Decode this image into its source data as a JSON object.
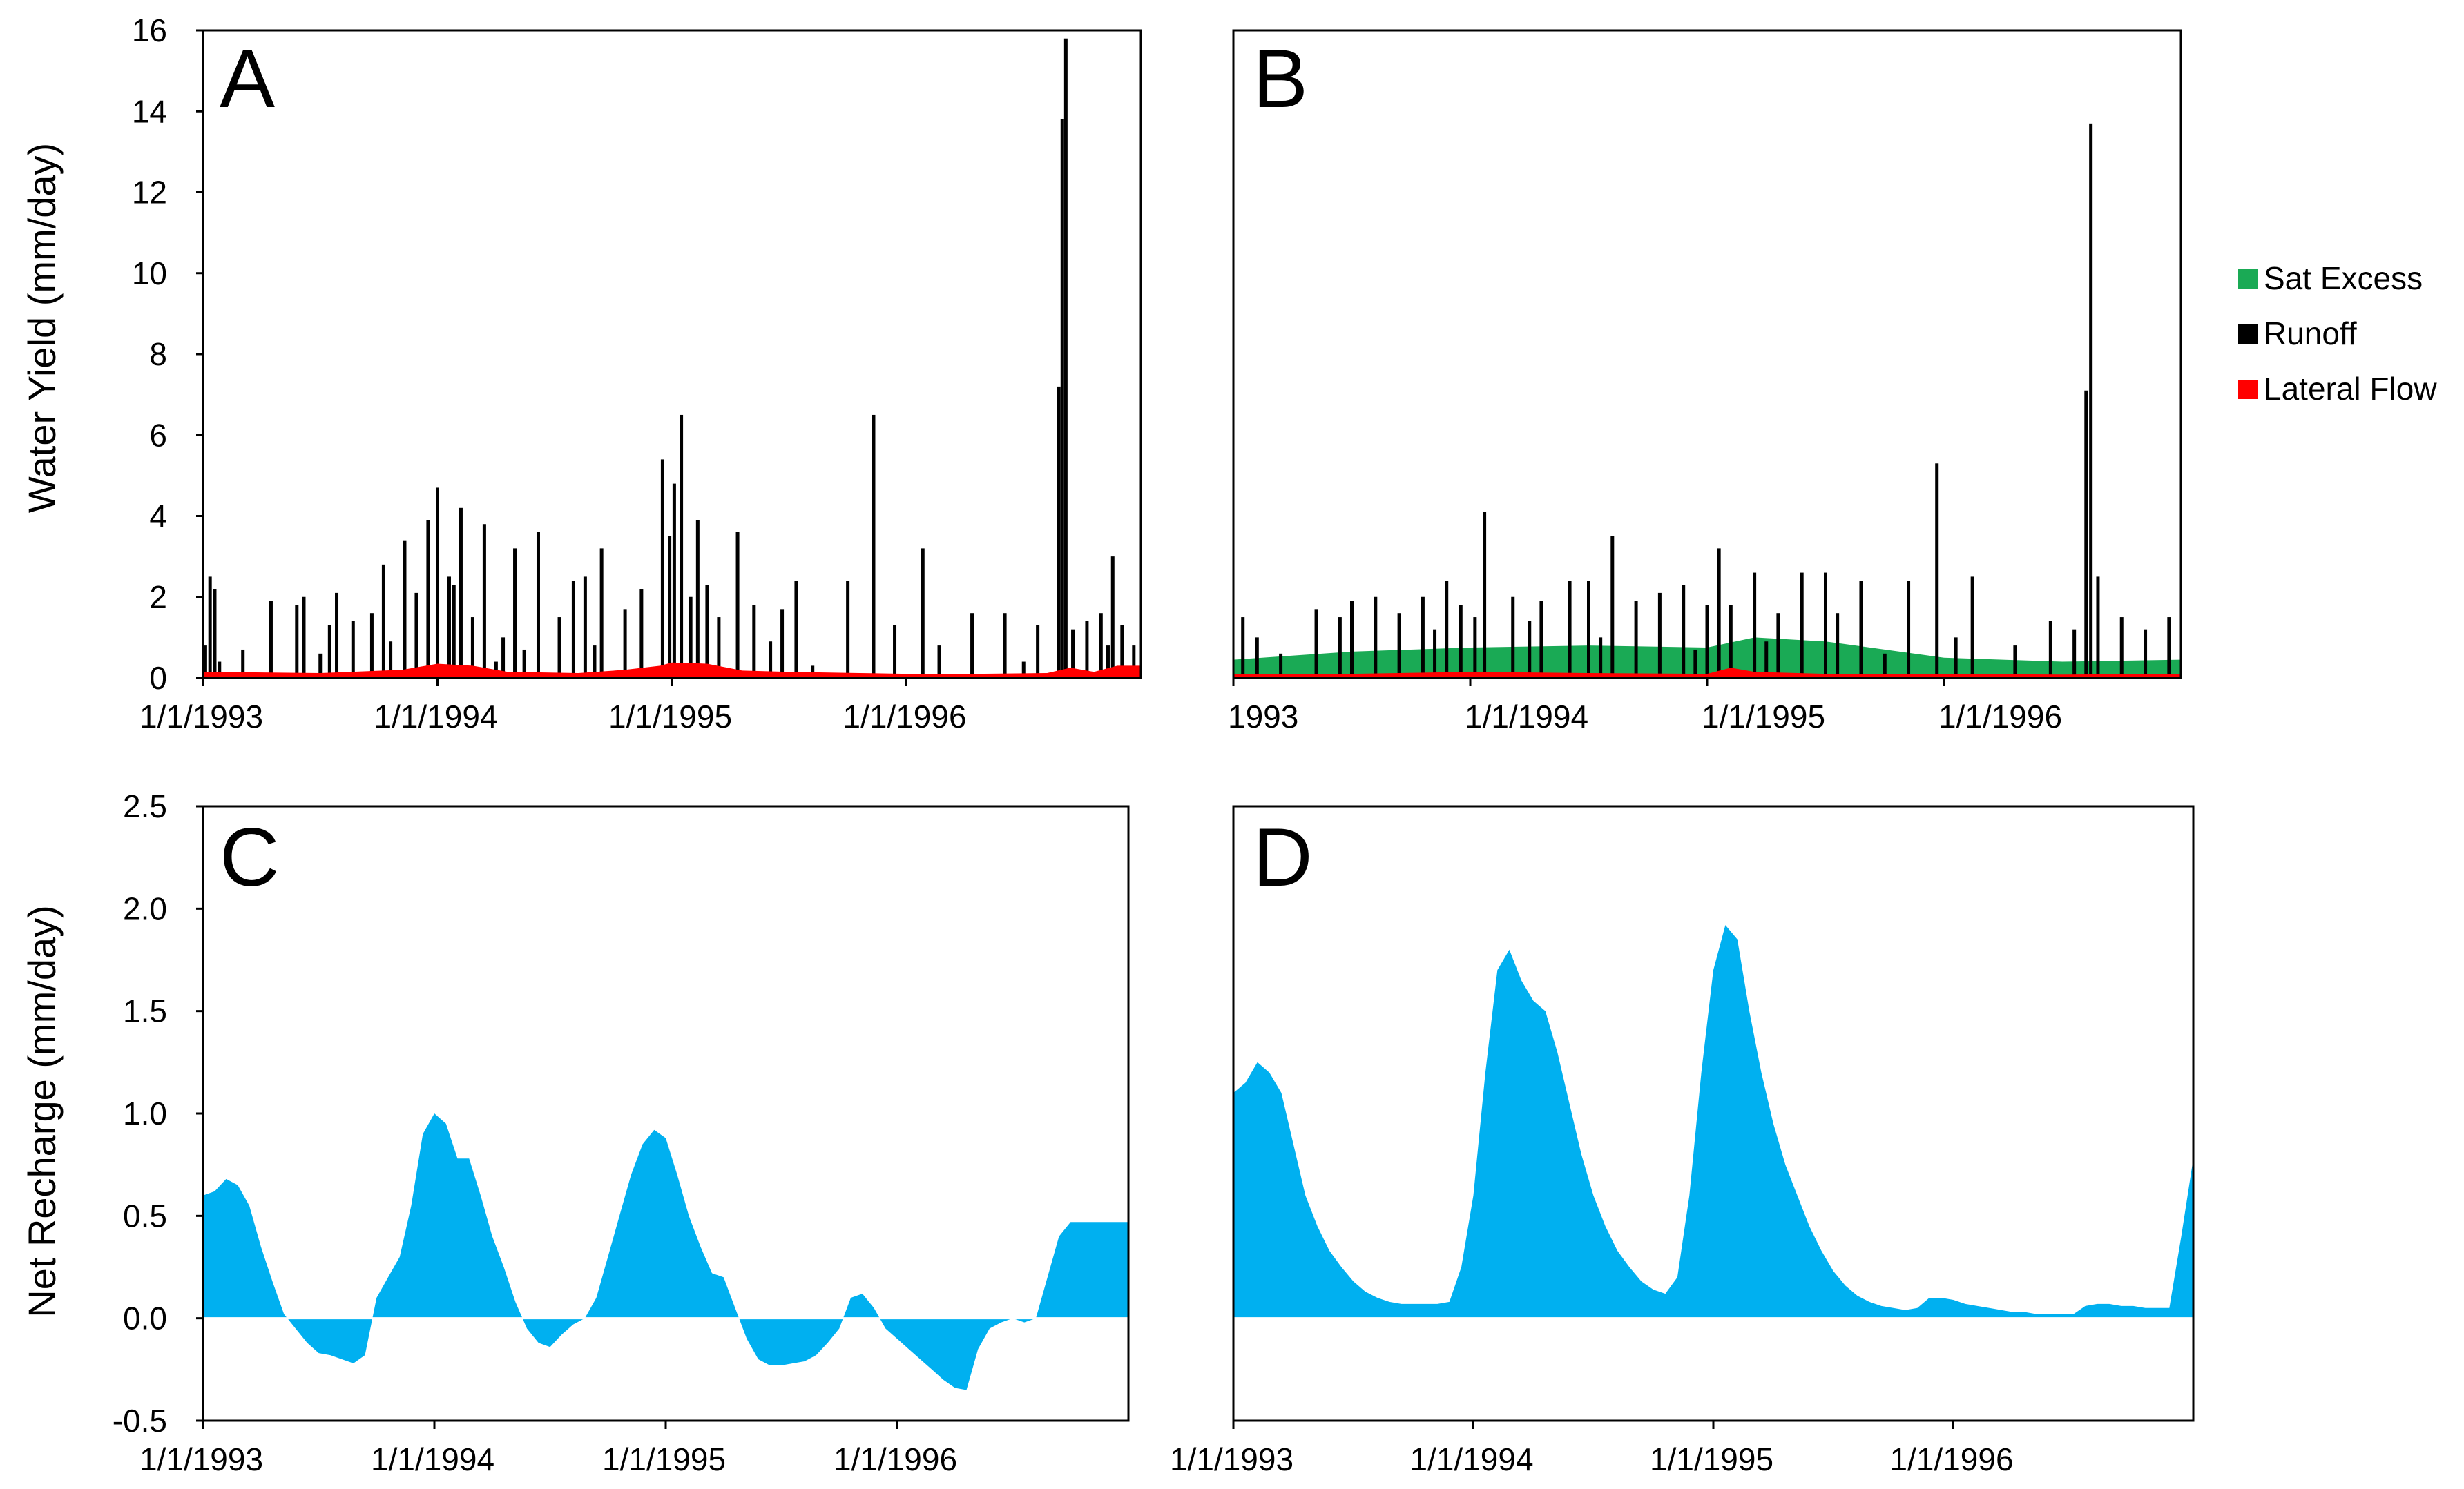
{
  "colors": {
    "sat_excess": "#1aaa55",
    "runoff": "#000000",
    "lateral_flow": "#ff0000",
    "net_recharge": "#00b0f0"
  },
  "legend": {
    "items": [
      {
        "label": "Sat Excess",
        "color": "#1aaa55"
      },
      {
        "label": "Runoff",
        "color": "#000000"
      },
      {
        "label": "Lateral Flow",
        "color": "#ff0000"
      }
    ]
  },
  "chart_data": [
    {
      "panel": "A",
      "type": "bar",
      "ylabel": "Water Yield (mm/day)",
      "ylim": [
        0,
        16
      ],
      "yticks": [
        "0",
        "2",
        "4",
        "6",
        "8",
        "10",
        "12",
        "14",
        "16"
      ],
      "xlim": [
        0,
        4
      ],
      "xtick_labels": [
        "1/1/1993",
        "1/1/1994",
        "1/1/1995",
        "1/1/1996"
      ],
      "series": [
        {
          "name": "Runoff",
          "x": [
            0.01,
            0.03,
            0.05,
            0.07,
            0.17,
            0.29,
            0.4,
            0.43,
            0.5,
            0.54,
            0.57,
            0.64,
            0.72,
            0.77,
            0.8,
            0.86,
            0.91,
            0.96,
            1.0,
            1.05,
            1.07,
            1.1,
            1.15,
            1.2,
            1.25,
            1.28,
            1.33,
            1.37,
            1.43,
            1.52,
            1.58,
            1.63,
            1.67,
            1.7,
            1.8,
            1.87,
            1.96,
            1.99,
            2.01,
            2.04,
            2.08,
            2.11,
            2.15,
            2.2,
            2.28,
            2.35,
            2.42,
            2.47,
            2.53,
            2.6,
            2.75,
            2.86,
            2.95,
            3.07,
            3.14,
            3.28,
            3.42,
            3.5,
            3.56,
            3.65,
            3.665,
            3.68,
            3.71,
            3.77,
            3.83,
            3.86,
            3.88,
            3.92,
            3.97
          ],
          "values": [
            0.8,
            2.5,
            2.2,
            0.4,
            0.7,
            1.9,
            1.8,
            2.0,
            0.6,
            1.3,
            2.1,
            1.4,
            1.6,
            2.8,
            0.9,
            3.4,
            2.1,
            3.9,
            4.7,
            2.5,
            2.3,
            4.2,
            1.5,
            3.8,
            0.4,
            1.0,
            3.2,
            0.7,
            3.6,
            1.5,
            2.4,
            2.5,
            0.8,
            3.2,
            1.7,
            2.2,
            5.4,
            3.5,
            4.8,
            6.5,
            2.0,
            3.9,
            2.3,
            1.5,
            3.6,
            1.8,
            0.9,
            1.7,
            2.4,
            0.3,
            2.4,
            6.5,
            1.3,
            3.2,
            0.8,
            1.6,
            1.6,
            0.4,
            1.3,
            7.2,
            13.8,
            15.8,
            1.2,
            1.4,
            1.6,
            0.8,
            3.0,
            1.3,
            0.8
          ]
        },
        {
          "name": "Lateral Flow",
          "x": [
            0,
            0.5,
            0.85,
            1.0,
            1.15,
            1.3,
            1.6,
            1.8,
            1.95,
            2.0,
            2.15,
            2.3,
            2.5,
            2.8,
            3.0,
            3.3,
            3.6,
            3.7,
            3.8,
            3.9,
            4.0
          ],
          "values": [
            0.15,
            0.12,
            0.2,
            0.35,
            0.3,
            0.15,
            0.12,
            0.2,
            0.3,
            0.38,
            0.35,
            0.18,
            0.15,
            0.12,
            0.1,
            0.1,
            0.12,
            0.25,
            0.15,
            0.3,
            0.3
          ]
        }
      ]
    },
    {
      "panel": "B",
      "type": "bar",
      "ylim": [
        0,
        16
      ],
      "xlim": [
        0,
        4
      ],
      "xtick_labels": [
        "1993",
        "1/1/1994",
        "1/1/1995",
        "1/1/1996"
      ],
      "series": [
        {
          "name": "Sat Excess",
          "x": [
            0,
            0.5,
            1.0,
            1.5,
            2.0,
            2.2,
            2.5,
            3.0,
            3.5,
            4.0
          ],
          "values": [
            0.45,
            0.65,
            0.75,
            0.8,
            0.75,
            1.0,
            0.9,
            0.5,
            0.4,
            0.45
          ]
        },
        {
          "name": "Runoff",
          "x": [
            0.04,
            0.1,
            0.2,
            0.35,
            0.45,
            0.5,
            0.6,
            0.7,
            0.8,
            0.85,
            0.9,
            0.96,
            1.02,
            1.06,
            1.18,
            1.25,
            1.3,
            1.42,
            1.5,
            1.55,
            1.6,
            1.7,
            1.8,
            1.9,
            1.95,
            2.0,
            2.05,
            2.1,
            2.2,
            2.25,
            2.3,
            2.4,
            2.5,
            2.55,
            2.65,
            2.75,
            2.85,
            2.97,
            3.05,
            3.12,
            3.3,
            3.45,
            3.55,
            3.6,
            3.62,
            3.65,
            3.75,
            3.85,
            3.95
          ],
          "values": [
            1.5,
            1.0,
            0.6,
            1.7,
            1.5,
            1.9,
            2.0,
            1.6,
            2.0,
            1.2,
            2.4,
            1.8,
            1.5,
            4.1,
            2.0,
            1.4,
            1.9,
            2.4,
            2.4,
            1.0,
            3.5,
            1.9,
            2.1,
            2.3,
            0.7,
            1.8,
            3.2,
            1.8,
            2.6,
            0.9,
            1.6,
            2.6,
            2.6,
            1.6,
            2.4,
            0.6,
            2.4,
            5.3,
            1.0,
            2.5,
            0.8,
            1.4,
            1.2,
            7.1,
            13.7,
            2.5,
            1.5,
            1.2,
            1.5
          ]
        },
        {
          "name": "Lateral Flow",
          "x": [
            0,
            0.5,
            1.0,
            1.5,
            2.0,
            2.1,
            2.2,
            2.5,
            3.0,
            3.5,
            4.0
          ],
          "values": [
            0.1,
            0.1,
            0.15,
            0.12,
            0.1,
            0.25,
            0.15,
            0.1,
            0.1,
            0.08,
            0.1
          ]
        }
      ]
    },
    {
      "panel": "C",
      "type": "area",
      "ylabel": "Net Recharge (mm/day)",
      "ylim": [
        -0.5,
        2.5
      ],
      "yticks": [
        "-0.5",
        "0.0",
        "0.5",
        "1.0",
        "1.5",
        "2.0",
        "2.5"
      ],
      "xlim": [
        0,
        4
      ],
      "xtick_labels": [
        "1/1/1993",
        "1/1/1994",
        "1/1/1995",
        "1/1/1996"
      ],
      "series": [
        {
          "name": "Net Recharge",
          "x": [
            0,
            0.05,
            0.1,
            0.15,
            0.2,
            0.25,
            0.3,
            0.35,
            0.4,
            0.45,
            0.5,
            0.55,
            0.6,
            0.65,
            0.7,
            0.75,
            0.8,
            0.85,
            0.9,
            0.95,
            1.0,
            1.05,
            1.1,
            1.15,
            1.2,
            1.25,
            1.3,
            1.35,
            1.4,
            1.45,
            1.5,
            1.55,
            1.6,
            1.65,
            1.7,
            1.75,
            1.8,
            1.85,
            1.9,
            1.95,
            2.0,
            2.05,
            2.1,
            2.15,
            2.2,
            2.25,
            2.3,
            2.35,
            2.4,
            2.45,
            2.5,
            2.55,
            2.6,
            2.65,
            2.7,
            2.75,
            2.8,
            2.85,
            2.9,
            2.95,
            3.0,
            3.05,
            3.1,
            3.15,
            3.2,
            3.25,
            3.3,
            3.35,
            3.4,
            3.45,
            3.5,
            3.55,
            3.6,
            3.65,
            3.7,
            3.75,
            3.8,
            3.85,
            3.9,
            3.95,
            4.0
          ],
          "values": [
            0.6,
            0.62,
            0.68,
            0.65,
            0.55,
            0.35,
            0.18,
            0.02,
            -0.05,
            -0.12,
            -0.17,
            -0.18,
            -0.2,
            -0.22,
            -0.18,
            0.1,
            0.2,
            0.3,
            0.55,
            0.9,
            1.0,
            0.95,
            0.78,
            0.78,
            0.6,
            0.4,
            0.25,
            0.08,
            -0.05,
            -0.12,
            -0.14,
            -0.08,
            -0.03,
            0.0,
            0.1,
            0.3,
            0.5,
            0.7,
            0.85,
            0.92,
            0.88,
            0.7,
            0.5,
            0.35,
            0.22,
            0.2,
            0.05,
            -0.1,
            -0.2,
            -0.23,
            -0.23,
            -0.22,
            -0.21,
            -0.18,
            -0.12,
            -0.05,
            0.1,
            0.12,
            0.05,
            -0.05,
            -0.1,
            -0.15,
            -0.2,
            -0.25,
            -0.3,
            -0.34,
            -0.35,
            -0.15,
            -0.05,
            -0.02,
            0.0,
            -0.02,
            0.0,
            0.2,
            0.4,
            0.47,
            0.47,
            0.47,
            0.47,
            0.47,
            0.47
          ]
        }
      ]
    },
    {
      "panel": "D",
      "type": "area",
      "ylim": [
        -0.5,
        2.5
      ],
      "xlim": [
        0,
        4
      ],
      "xtick_labels": [
        "1/1/1993",
        "1/1/1994",
        "1/1/1995",
        "1/1/1996"
      ],
      "series": [
        {
          "name": "Net Recharge",
          "x": [
            0,
            0.05,
            0.1,
            0.15,
            0.2,
            0.25,
            0.3,
            0.35,
            0.4,
            0.45,
            0.5,
            0.55,
            0.6,
            0.65,
            0.7,
            0.75,
            0.8,
            0.85,
            0.9,
            0.95,
            1.0,
            1.05,
            1.1,
            1.15,
            1.2,
            1.25,
            1.3,
            1.35,
            1.4,
            1.45,
            1.5,
            1.55,
            1.6,
            1.65,
            1.7,
            1.75,
            1.8,
            1.85,
            1.9,
            1.95,
            2.0,
            2.05,
            2.1,
            2.15,
            2.2,
            2.25,
            2.3,
            2.35,
            2.4,
            2.45,
            2.5,
            2.55,
            2.6,
            2.65,
            2.7,
            2.75,
            2.8,
            2.85,
            2.9,
            2.95,
            3.0,
            3.05,
            3.1,
            3.15,
            3.2,
            3.25,
            3.3,
            3.35,
            3.4,
            3.45,
            3.5,
            3.55,
            3.6,
            3.65,
            3.7,
            3.75,
            3.8,
            3.85,
            3.9,
            3.95,
            4.0
          ],
          "values": [
            1.1,
            1.15,
            1.25,
            1.2,
            1.1,
            0.85,
            0.6,
            0.45,
            0.33,
            0.25,
            0.18,
            0.13,
            0.1,
            0.08,
            0.07,
            0.07,
            0.07,
            0.07,
            0.08,
            0.25,
            0.6,
            1.2,
            1.7,
            1.8,
            1.65,
            1.55,
            1.5,
            1.3,
            1.05,
            0.8,
            0.6,
            0.45,
            0.33,
            0.25,
            0.18,
            0.14,
            0.12,
            0.2,
            0.6,
            1.2,
            1.7,
            1.92,
            1.85,
            1.5,
            1.2,
            0.95,
            0.75,
            0.6,
            0.45,
            0.33,
            0.23,
            0.16,
            0.11,
            0.08,
            0.06,
            0.05,
            0.04,
            0.05,
            0.1,
            0.1,
            0.09,
            0.07,
            0.06,
            0.05,
            0.04,
            0.03,
            0.03,
            0.02,
            0.02,
            0.02,
            0.02,
            0.06,
            0.07,
            0.07,
            0.06,
            0.06,
            0.05,
            0.05,
            0.05,
            0.4,
            0.78
          ]
        }
      ]
    }
  ]
}
